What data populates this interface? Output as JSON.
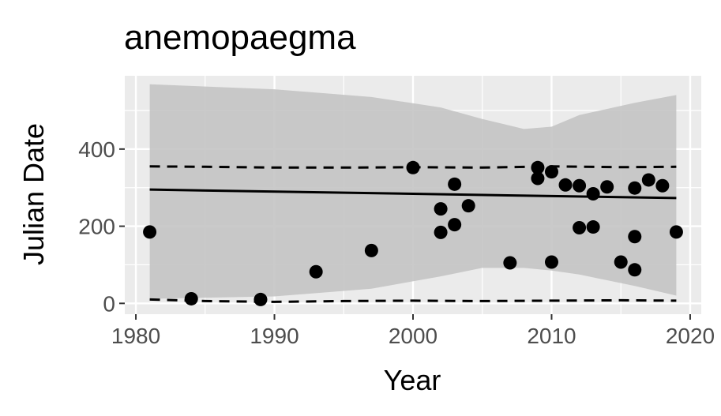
{
  "chart_data": {
    "type": "scatter",
    "title": "anemopaegma",
    "xlabel": "Year",
    "ylabel": "Julian Date",
    "xlim": [
      1979.2,
      2020.8
    ],
    "ylim": [
      -28,
      590
    ],
    "x_ticks": [
      1980,
      1990,
      2000,
      2010,
      2020
    ],
    "y_ticks": [
      0,
      200,
      400
    ],
    "grid": true,
    "legend": "none",
    "colors": {
      "panel": "#ebebeb",
      "grid": "#ffffff",
      "points": "#000000",
      "ribbon": "#c4c4c4",
      "line": "#000000"
    },
    "points": [
      {
        "x": 1981,
        "y": 185
      },
      {
        "x": 1984,
        "y": 12
      },
      {
        "x": 1989,
        "y": 10
      },
      {
        "x": 1993,
        "y": 82
      },
      {
        "x": 1997,
        "y": 137
      },
      {
        "x": 2000,
        "y": 352
      },
      {
        "x": 2002,
        "y": 245
      },
      {
        "x": 2002,
        "y": 184
      },
      {
        "x": 2003,
        "y": 309
      },
      {
        "x": 2003,
        "y": 204
      },
      {
        "x": 2004,
        "y": 253
      },
      {
        "x": 2007,
        "y": 105
      },
      {
        "x": 2009,
        "y": 352
      },
      {
        "x": 2009,
        "y": 324
      },
      {
        "x": 2010,
        "y": 341
      },
      {
        "x": 2010,
        "y": 107
      },
      {
        "x": 2011,
        "y": 307
      },
      {
        "x": 2012,
        "y": 305
      },
      {
        "x": 2012,
        "y": 196
      },
      {
        "x": 2013,
        "y": 284
      },
      {
        "x": 2013,
        "y": 198
      },
      {
        "x": 2014,
        "y": 302
      },
      {
        "x": 2015,
        "y": 107
      },
      {
        "x": 2016,
        "y": 299
      },
      {
        "x": 2016,
        "y": 173
      },
      {
        "x": 2016,
        "y": 87
      },
      {
        "x": 2017,
        "y": 320
      },
      {
        "x": 2018,
        "y": 305
      },
      {
        "x": 2019,
        "y": 185
      }
    ],
    "fit_line": {
      "x": [
        1981,
        2019
      ],
      "y": [
        295,
        273
      ]
    },
    "upper_quantile": {
      "x": [
        1981,
        1985,
        1990,
        1995,
        2000,
        2005,
        2010,
        2015,
        2019
      ],
      "y": [
        355,
        354,
        352,
        352,
        353,
        352,
        355,
        353,
        354
      ]
    },
    "lower_quantile": {
      "x": [
        1981,
        1985,
        1990,
        1995,
        2000,
        2005,
        2010,
        2015,
        2019
      ],
      "y": [
        10,
        6,
        4,
        6,
        7,
        6,
        7,
        8,
        7
      ]
    },
    "ribbon_upper": {
      "x": [
        1981,
        1990,
        1997,
        2002,
        2005,
        2008,
        2010,
        2012,
        2016,
        2019
      ],
      "y": [
        568,
        555,
        535,
        508,
        478,
        452,
        458,
        488,
        520,
        540
      ]
    },
    "ribbon_lower": {
      "x": [
        1981,
        1990,
        1997,
        2002,
        2005,
        2008,
        2010,
        2012,
        2016,
        2019
      ],
      "y": [
        12,
        18,
        38,
        70,
        92,
        92,
        85,
        75,
        45,
        20
      ]
    }
  }
}
